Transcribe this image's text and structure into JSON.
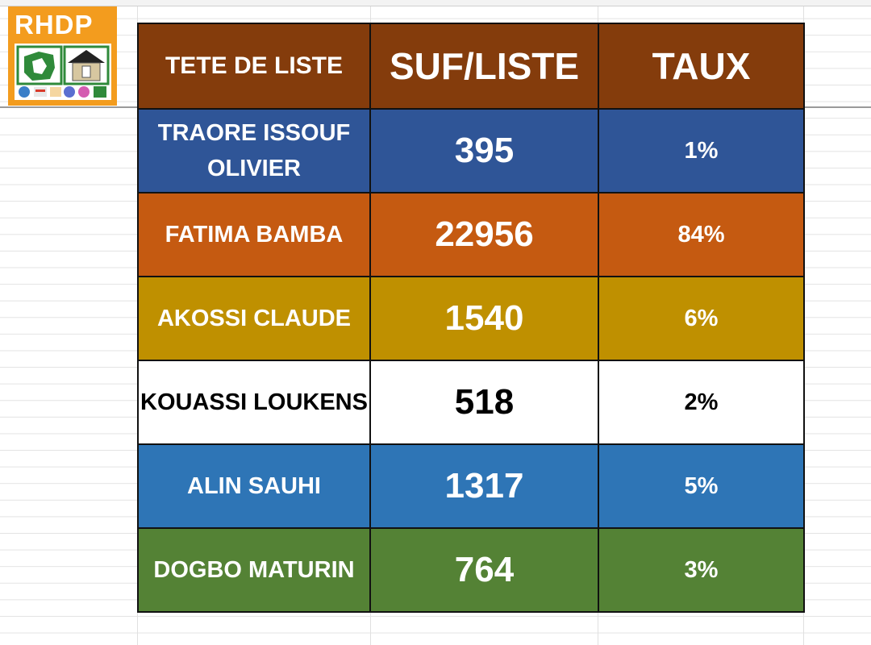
{
  "logo": {
    "text": "RHDP"
  },
  "table": {
    "headers": [
      "TETE DE LISTE",
      "SUF/LISTE",
      "TAUX"
    ],
    "rows": [
      {
        "name": "TRAORE ISSOUF OLIVIER",
        "votes": "395",
        "rate": "1%",
        "bg": "#2f5597",
        "fg": "#ffffff"
      },
      {
        "name": "FATIMA BAMBA",
        "votes": "22956",
        "rate": "84%",
        "bg": "#c55a11",
        "fg": "#ffffff"
      },
      {
        "name": "AKOSSI CLAUDE",
        "votes": "1540",
        "rate": "6%",
        "bg": "#bf9000",
        "fg": "#ffffff"
      },
      {
        "name": "KOUASSI LOUKENS",
        "votes": "518",
        "rate": "2%",
        "bg": "#ffffff",
        "fg": "#000000"
      },
      {
        "name": "ALIN SAUHI",
        "votes": "1317",
        "rate": "5%",
        "bg": "#2e75b6",
        "fg": "#ffffff"
      },
      {
        "name": "DOGBO MATURIN",
        "votes": "764",
        "rate": "3%",
        "bg": "#548235",
        "fg": "#ffffff"
      }
    ],
    "header_bg": "#843c0c",
    "header_fg": "#ffffff"
  }
}
